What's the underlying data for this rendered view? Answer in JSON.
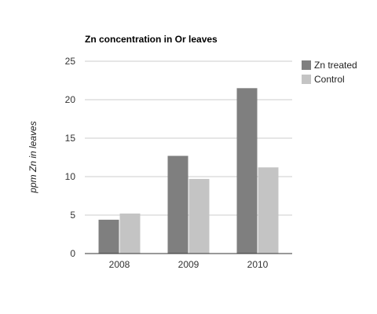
{
  "chart_data": {
    "type": "bar",
    "title": "Zn concentration in Or leaves",
    "xlabel": "",
    "ylabel": "ppm Zn in leaves",
    "categories": [
      "2008",
      "2009",
      "2010"
    ],
    "series": [
      {
        "name": "Zn treated",
        "values": [
          4.4,
          12.7,
          21.5
        ],
        "color": "#7f7f7f"
      },
      {
        "name": "Control",
        "values": [
          5.2,
          9.7,
          11.2
        ],
        "color": "#c4c4c4"
      }
    ],
    "ylim": [
      0,
      25
    ],
    "yticks": [
      0,
      5,
      10,
      15,
      20,
      25
    ],
    "grid": true,
    "legend_position": "right"
  }
}
